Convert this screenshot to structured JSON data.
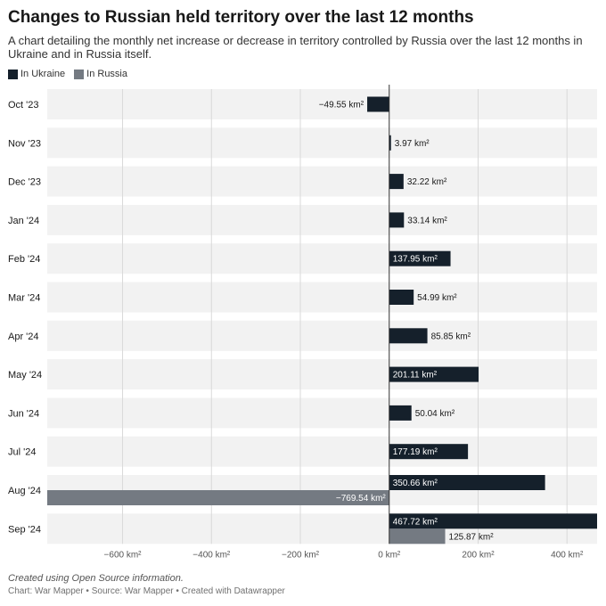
{
  "title": "Changes to Russian held territory over the last 12 months",
  "subtitle": "A chart detailing the monthly net increase or decrease in territory controlled by Russia over the last 12 months in Ukraine and in Russia itself.",
  "legend": [
    {
      "name": "In Ukraine",
      "color": "#15202b"
    },
    {
      "name": "In Russia",
      "color": "#747a82"
    }
  ],
  "notes": "Created using Open Source information.",
  "footer": {
    "chart": "Chart: War Mapper",
    "source": "Source: War Mapper",
    "tool": "Created with Datawrapper",
    "separator": " • "
  },
  "chart_data": {
    "type": "bar",
    "orientation": "horizontal",
    "unit": "km²",
    "categories": [
      "Oct '23",
      "Nov '23",
      "Dec '23",
      "Jan '24",
      "Feb '24",
      "Mar '24",
      "Apr '24",
      "May '24",
      "Jun '24",
      "Jul '24",
      "Aug '24",
      "Sep '24"
    ],
    "series": [
      {
        "name": "In Ukraine",
        "color": "#15202b",
        "values": [
          -49.55,
          3.97,
          32.22,
          33.14,
          137.95,
          54.99,
          85.85,
          201.11,
          50.04,
          177.19,
          350.66,
          467.72
        ]
      },
      {
        "name": "In Russia",
        "color": "#747a82",
        "values": [
          null,
          null,
          null,
          null,
          null,
          null,
          null,
          null,
          null,
          null,
          -769.54,
          125.87
        ]
      }
    ],
    "value_labels": {
      "In Ukraine": [
        "−49.55 km²",
        "3.97 km²",
        "32.22 km²",
        "33.14 km²",
        "137.95 km²",
        "54.99 km²",
        "85.85 km²",
        "201.11 km²",
        "50.04 km²",
        "177.19 km²",
        "350.66 km²",
        "467.72 km²"
      ],
      "In Russia": [
        null,
        null,
        null,
        null,
        null,
        null,
        null,
        null,
        null,
        null,
        "−769.54 km²",
        "125.87 km²"
      ]
    },
    "xlim": [
      -769.54,
      467.72
    ],
    "x_ticks": [
      -600,
      -400,
      -200,
      0,
      200,
      400
    ],
    "x_tick_labels": [
      "−600 km²",
      "−400 km²",
      "−200 km²",
      "0 km²",
      "200 km²",
      "400 km²"
    ],
    "grid": true
  }
}
